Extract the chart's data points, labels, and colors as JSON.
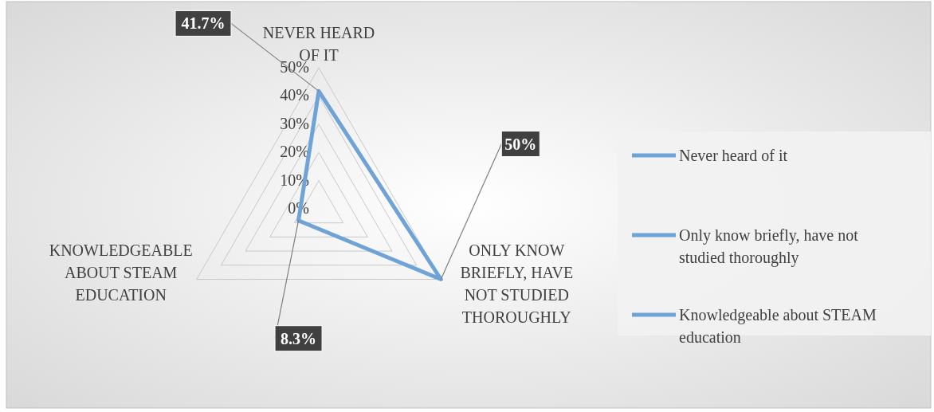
{
  "chart_data": {
    "type": "radar",
    "categories": [
      "NEVER HEARD OF IT",
      "ONLY KNOW BRIEFLY, HAVE NOT STUDIED THOROUGHLY",
      "KNOWLEDGEABLE ABOUT STEAM EDUCATION"
    ],
    "series": [
      {
        "color": "#6fa3d8",
        "values": [
          41.7,
          50,
          8.3
        ],
        "value_labels": [
          "41.7%",
          "50%",
          "8.3%"
        ]
      }
    ],
    "ylim": [
      0,
      50
    ],
    "yticks": [
      {
        "value": 0,
        "label": "0%"
      },
      {
        "value": 10,
        "label": "10%"
      },
      {
        "value": 20,
        "label": "20%"
      },
      {
        "value": 30,
        "label": "30%"
      },
      {
        "value": 40,
        "label": "40%"
      },
      {
        "value": 50,
        "label": "50%"
      }
    ],
    "annotations": [
      "Never heard of it",
      "Only know briefly, have not studied thoroughly",
      "Knowledgeable about STEAM education"
    ],
    "grid": true,
    "marker": "none",
    "line_style": "solid"
  }
}
